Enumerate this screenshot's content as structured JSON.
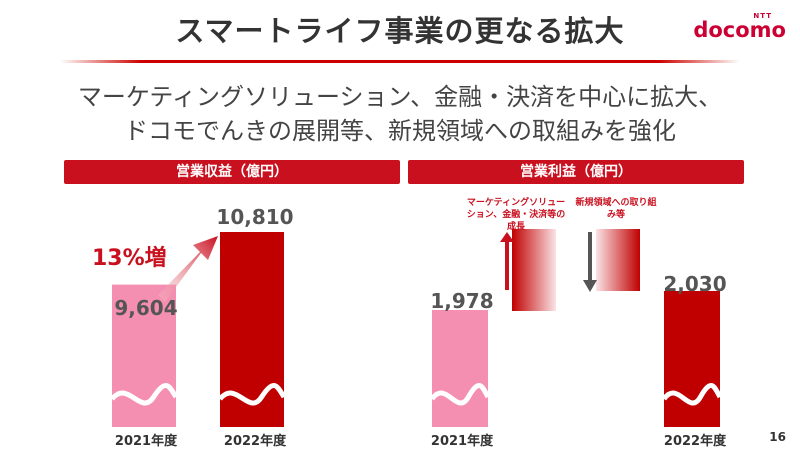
{
  "header": {
    "title": "スマートライフ事業の更なる拡大",
    "logo_small": "NTT",
    "logo_brand": "docomo"
  },
  "subtitle": {
    "line1": "マーケティングソリューション、金融・決済を中心に拡大、",
    "line2": "ドコモでんきの展開等、新規領域への取組みを強化"
  },
  "colors": {
    "accent": "#c8101f",
    "bar_dark": "#c00000",
    "bar_light": "#f48fb1"
  },
  "chart_data": [
    {
      "type": "bar",
      "title": "営業収益（億円）",
      "categories": [
        "2021年度",
        "2022年度"
      ],
      "values": [
        9604,
        10810
      ],
      "value_labels": [
        "9,604",
        "10,810"
      ],
      "annotation": "13%増",
      "axis_break": true
    },
    {
      "type": "waterfall",
      "title": "営業利益（億円）",
      "categories": [
        "2021年度",
        "マーケティングソリューション、金融・決済等の成長",
        "新規領域への取り組み等",
        "2022年度"
      ],
      "values": [
        1978,
        null,
        null,
        2030
      ],
      "value_labels": [
        "1,978",
        "",
        "",
        "2,030"
      ],
      "x_labels": [
        "2021年度",
        "",
        "",
        "2022年度"
      ],
      "annotations": [
        "マーケティングソリューション、金融・決済等の成長",
        "新規領域への取り組み等"
      ],
      "axis_break": true
    }
  ],
  "page": {
    "number": "16"
  }
}
